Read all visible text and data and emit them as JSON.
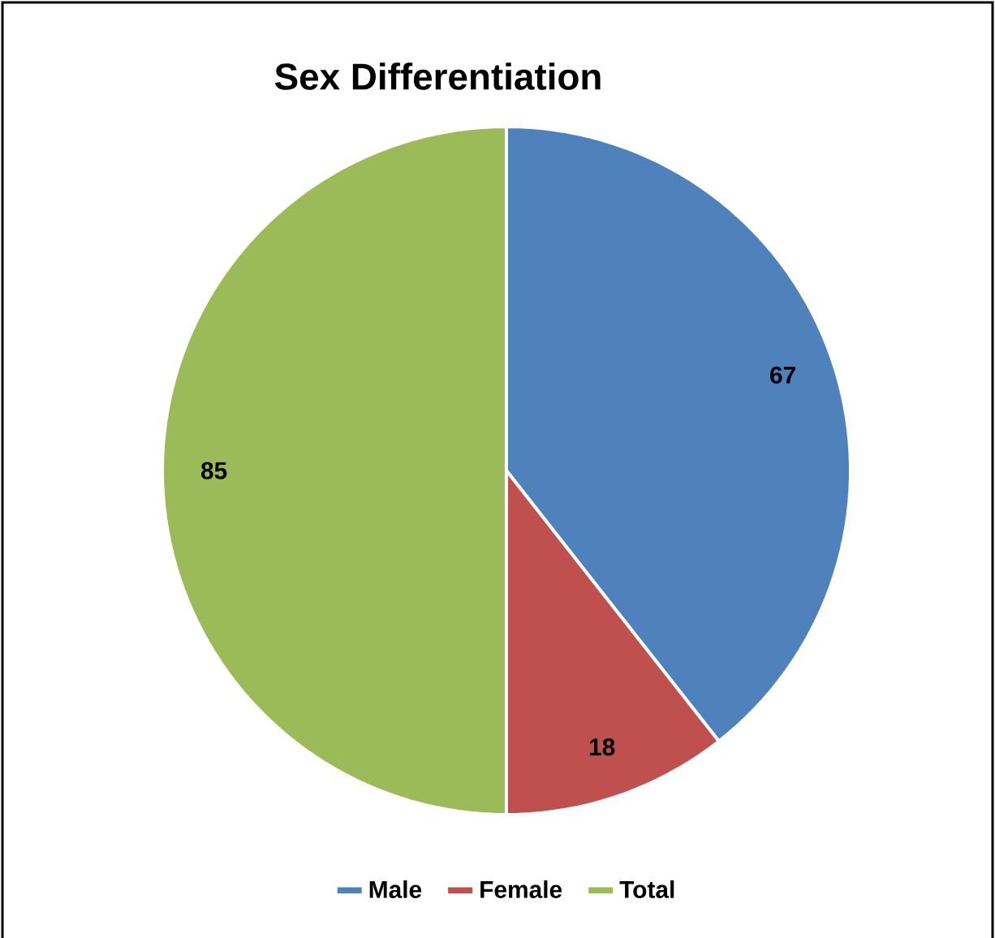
{
  "chart_data": {
    "type": "pie",
    "title": "Sex Differentiation",
    "categories": [
      "Male",
      "Female",
      "Total"
    ],
    "values": [
      67,
      18,
      85
    ],
    "colors": [
      "#4f81bd",
      "#c0504d",
      "#9bbb59"
    ],
    "data_labels": true,
    "legend": "bottom"
  }
}
